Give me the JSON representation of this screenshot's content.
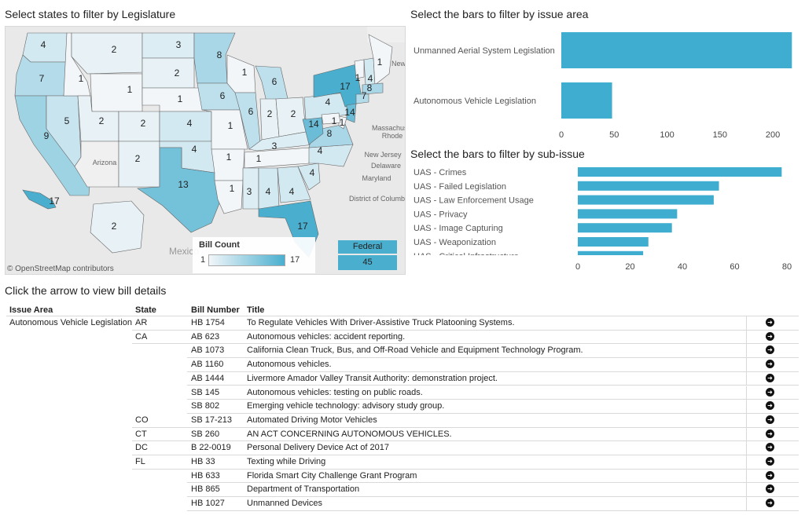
{
  "map": {
    "title": "Select states to filter by Legislature",
    "credit": "© OpenStreetMap contributors",
    "legend_title": "Bill Count",
    "legend_min": "1",
    "legend_max": "17",
    "federal_label": "Federal",
    "federal_value": "45",
    "colors": {
      "base": "#f2f6f9",
      "accent": "#4aafcf",
      "water": "#e9e9e9"
    },
    "labels": [
      "Arizona",
      "Mexico",
      "New Jersey",
      "Delaware",
      "Maryland",
      "District of Columbia",
      "Rhode",
      "Massachusetts",
      "New"
    ],
    "state_counts": [
      {
        "id": "WA",
        "count": 4
      },
      {
        "id": "OR",
        "count": 7
      },
      {
        "id": "CA",
        "count": 9
      },
      {
        "id": "NV",
        "count": 5
      },
      {
        "id": "ID",
        "count": 1
      },
      {
        "id": "MT",
        "count": 2
      },
      {
        "id": "WY",
        "count": 1
      },
      {
        "id": "UT",
        "count": 2
      },
      {
        "id": "CO",
        "count": 2
      },
      {
        "id": "AZ",
        "count": null
      },
      {
        "id": "NM",
        "count": 2
      },
      {
        "id": "ND",
        "count": 3
      },
      {
        "id": "SD",
        "count": 2
      },
      {
        "id": "NE",
        "count": 1
      },
      {
        "id": "KS",
        "count": 4
      },
      {
        "id": "OK",
        "count": 4
      },
      {
        "id": "TX",
        "count": 13
      },
      {
        "id": "MN",
        "count": 8
      },
      {
        "id": "IA",
        "count": 6
      },
      {
        "id": "MO",
        "count": 1
      },
      {
        "id": "AR",
        "count": 1
      },
      {
        "id": "LA",
        "count": 1
      },
      {
        "id": "WI",
        "count": 1
      },
      {
        "id": "IL",
        "count": 6
      },
      {
        "id": "MI",
        "count": 6
      },
      {
        "id": "IN",
        "count": 2
      },
      {
        "id": "OH",
        "count": 2
      },
      {
        "id": "KY",
        "count": 3
      },
      {
        "id": "TN",
        "count": 1
      },
      {
        "id": "MS",
        "count": 3
      },
      {
        "id": "AL",
        "count": 4
      },
      {
        "id": "GA",
        "count": 4
      },
      {
        "id": "FL",
        "count": 17
      },
      {
        "id": "SC",
        "count": 4
      },
      {
        "id": "NC",
        "count": 4
      },
      {
        "id": "VA",
        "count": 8
      },
      {
        "id": "WV",
        "count": 14
      },
      {
        "id": "PA",
        "count": 4
      },
      {
        "id": "NY",
        "count": 17
      },
      {
        "id": "VT",
        "count": 1
      },
      {
        "id": "NH",
        "count": 4
      },
      {
        "id": "ME",
        "count": 1
      },
      {
        "id": "MA",
        "count": 8
      },
      {
        "id": "CT",
        "count": 7
      },
      {
        "id": "NJ",
        "count": 14
      },
      {
        "id": "DE",
        "count": 1
      },
      {
        "id": "MD",
        "count": 1
      },
      {
        "id": "AK",
        "count": 2
      },
      {
        "id": "HI",
        "count": 17
      }
    ]
  },
  "issue_chart": {
    "title": "Select the bars to filter by issue area",
    "chart_data": {
      "type": "bar",
      "categories": [
        "Unmanned Aerial System Legislation",
        "Autonomous Vehicle Legislation"
      ],
      "values": [
        218,
        48
      ],
      "xticks": [
        0,
        50,
        100,
        150,
        200
      ],
      "xlim": [
        0,
        220
      ],
      "orientation": "horizontal",
      "color": "#3fadcf"
    }
  },
  "subissue_chart": {
    "title": "Select the bars to filter by sub-issue",
    "chart_data": {
      "type": "bar",
      "categories": [
        "UAS - Crimes",
        "UAS - Failed Legislation",
        "UAS - Law Enforcement Usage",
        "UAS - Privacy",
        "UAS - Image Capturing",
        "UAS - Weaponization",
        "UAS - Critical Infrastructure"
      ],
      "values": [
        78,
        54,
        52,
        38,
        36,
        27,
        25
      ],
      "xticks": [
        0,
        20,
        40,
        60,
        80
      ],
      "xlim": [
        0,
        80
      ],
      "orientation": "horizontal",
      "color": "#3fadcf"
    }
  },
  "table": {
    "title": "Click the arrow to view bill details",
    "headers": {
      "issue": "Issue Area",
      "state": "State",
      "bill": "Bill Number",
      "title": "Title"
    },
    "arrow_icon": "arrow-right-circle-icon",
    "rows": [
      {
        "issue": "Autonomous Vehicle Legislation",
        "state": "AR",
        "bill": "HB 1754",
        "title": "To Regulate Vehicles With Driver-Assistive Truck Platooning Systems."
      },
      {
        "issue": "",
        "state": "CA",
        "bill": "AB 623",
        "title": "Autonomous vehicles: accident reporting."
      },
      {
        "issue": "",
        "state": "",
        "bill": "AB 1073",
        "title": "California Clean Truck, Bus, and Off-Road Vehicle and Equipment Technology Program."
      },
      {
        "issue": "",
        "state": "",
        "bill": "AB 1160",
        "title": "Autonomous vehicles."
      },
      {
        "issue": "",
        "state": "",
        "bill": "AB 1444",
        "title": "Livermore Amador Valley Transit Authority: demonstration project."
      },
      {
        "issue": "",
        "state": "",
        "bill": "SB 145",
        "title": "Autonomous vehicles: testing on public roads."
      },
      {
        "issue": "",
        "state": "",
        "bill": "SB 802",
        "title": "Emerging vehicle technology: advisory study group."
      },
      {
        "issue": "",
        "state": "CO",
        "bill": "SB 17-213",
        "title": "Automated Driving Motor Vehicles"
      },
      {
        "issue": "",
        "state": "CT",
        "bill": "SB 260",
        "title": "AN ACT CONCERNING AUTONOMOUS VEHICLES."
      },
      {
        "issue": "",
        "state": "DC",
        "bill": "B 22-0019",
        "title": "Personal Delivery Device Act of 2017"
      },
      {
        "issue": "",
        "state": "FL",
        "bill": "HB 33",
        "title": "Texting while Driving"
      },
      {
        "issue": "",
        "state": "",
        "bill": "HB 633",
        "title": "Florida Smart City Challenge Grant Program"
      },
      {
        "issue": "",
        "state": "",
        "bill": "HB 865",
        "title": "Department of Transportation"
      },
      {
        "issue": "",
        "state": "",
        "bill": "HB 1027",
        "title": "Unmanned Devices"
      }
    ]
  }
}
